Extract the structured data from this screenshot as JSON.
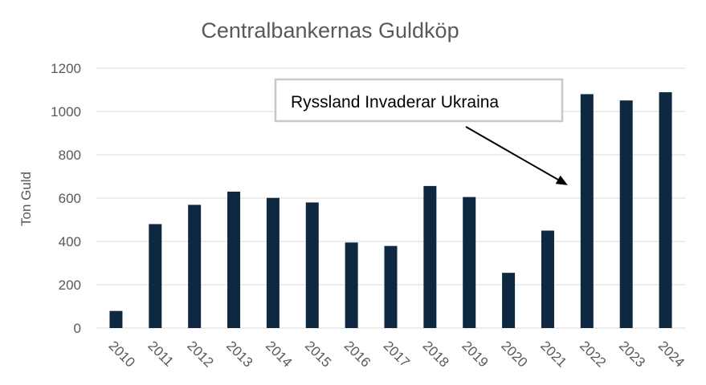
{
  "chart_data": {
    "type": "bar",
    "title": "Centralbankernas Guldköp",
    "xlabel": "",
    "ylabel": "Ton Guld",
    "categories": [
      "2010",
      "2011",
      "2012",
      "2013",
      "2014",
      "2015",
      "2016",
      "2017",
      "2018",
      "2019",
      "2020",
      "2021",
      "2022",
      "2023",
      "2024"
    ],
    "values": [
      79,
      480,
      569,
      630,
      601,
      580,
      395,
      379,
      656,
      605,
      255,
      450,
      1080,
      1051,
      1089
    ],
    "ylim": [
      0,
      1200
    ],
    "yticks": [
      0,
      200,
      400,
      600,
      800,
      1000,
      1200
    ],
    "grid": true,
    "legend": "none",
    "bar_color": "#0e2841",
    "annotation": {
      "text": "Ryssland Invaderar Ukraina",
      "arrow_target_category": "2022",
      "arrow_target_value": 630
    }
  }
}
